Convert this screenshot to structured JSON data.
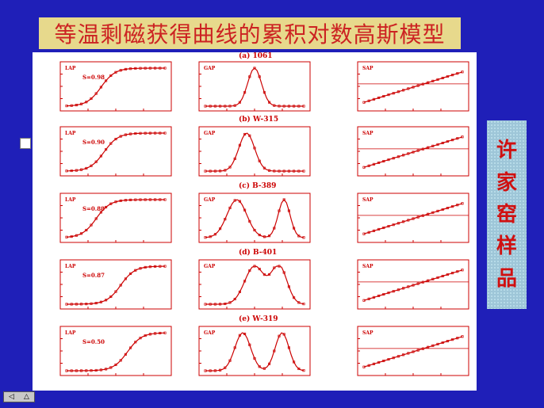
{
  "title": "等温剩磁获得曲线的累积对数高斯模型",
  "side_label": [
    "许",
    "家",
    "窑",
    "样",
    "品"
  ],
  "captions": [
    "(a) 1061",
    "(b) W-315",
    "(c) B-389",
    "(d) B-401",
    "(e) W-319"
  ],
  "rows": [
    {
      "lap_label": "LAP",
      "lap_value": "S=0.98",
      "gap_label": "GAP",
      "sap_label": "SAP"
    },
    {
      "lap_label": "LAP",
      "lap_value": "S=0.90",
      "gap_label": "GAP",
      "sap_label": "SAP"
    },
    {
      "lap_label": "LAP",
      "lap_value": "S=0.88",
      "gap_label": "GAP",
      "sap_label": "SAP"
    },
    {
      "lap_label": "LAP",
      "lap_value": "S=0.87",
      "gap_label": "GAP",
      "sap_label": "SAP"
    },
    {
      "lap_label": "LAP",
      "lap_value": "S=0.50",
      "gap_label": "GAP",
      "sap_label": "SAP"
    }
  ],
  "nav": {
    "prev_icon": "prev-icon",
    "up_icon": "up-arrow-icon"
  },
  "colors": {
    "background": "#1f1fb8",
    "title_bar": "#e7d98c",
    "title_text": "#cc2222",
    "plot": "#cc0000",
    "side_panel": "#9ec6d8"
  }
}
